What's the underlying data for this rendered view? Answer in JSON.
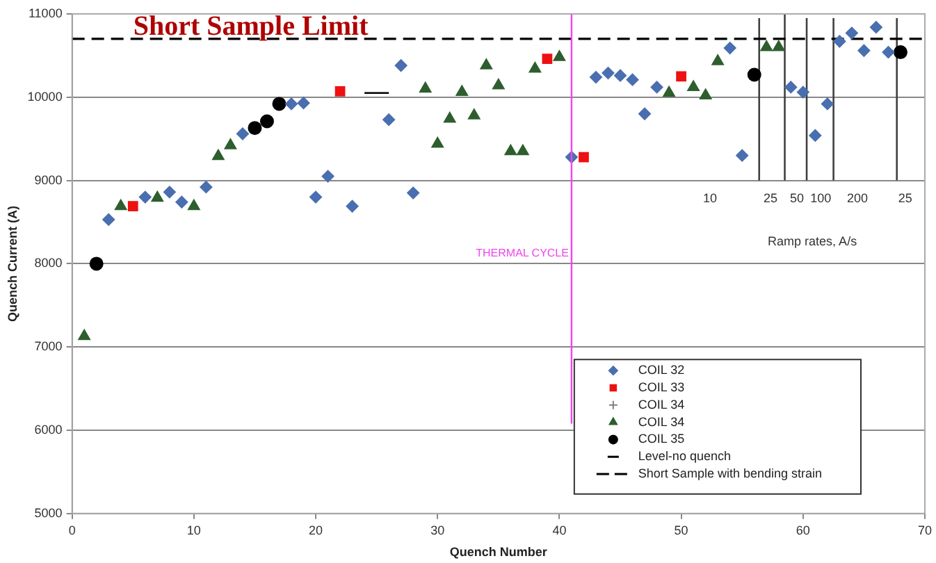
{
  "chart_data": {
    "type": "scatter",
    "title": "Short Sample Limit",
    "xlabel": "Quench Number",
    "ylabel": "Quench Current (A)",
    "xlim": [
      0,
      70
    ],
    "xticks": [
      0,
      10,
      20,
      30,
      40,
      50,
      60,
      70
    ],
    "ylim": [
      5000,
      11000
    ],
    "yticks": [
      5000,
      6000,
      7000,
      8000,
      9000,
      10000,
      11000
    ],
    "grid": "y",
    "legend": "bottom right",
    "series": [
      {
        "name": "COIL 32",
        "color": "#4a6fb0",
        "marker": "diamond",
        "x": [
          3,
          6,
          8,
          9,
          11,
          14,
          18,
          19,
          20,
          21,
          23,
          26,
          27,
          28,
          41,
          43,
          44,
          45,
          46,
          47,
          48,
          54,
          55,
          59,
          60,
          61,
          62,
          63,
          64,
          65,
          66,
          67
        ],
        "values": [
          8530,
          8800,
          8860,
          8740,
          8920,
          9560,
          9920,
          9930,
          8800,
          9050,
          8690,
          9730,
          10380,
          8850,
          9280,
          10240,
          10290,
          10260,
          10210,
          9800,
          10120,
          10590,
          9300,
          10120,
          10060,
          9540,
          9920,
          10670,
          10770,
          10560,
          10840,
          10540
        ]
      },
      {
        "name": "COIL 33",
        "color": "#ee1111",
        "marker": "square",
        "x": [
          5,
          22,
          39,
          42,
          50
        ],
        "values": [
          8690,
          10070,
          10460,
          9280,
          10250
        ]
      },
      {
        "name": "COIL 34",
        "color": "#808080",
        "marker": "cross"
      },
      {
        "name": "COIL 34",
        "color": "#2e5e2e",
        "marker": "triangle",
        "x": [
          1,
          4,
          7,
          10,
          12,
          13,
          29,
          30,
          31,
          32,
          33,
          34,
          35,
          36,
          37,
          38,
          40,
          49,
          51,
          52,
          53,
          57,
          58
        ],
        "values": [
          7130,
          8690,
          8790,
          8690,
          9290,
          9420,
          10100,
          9440,
          9740,
          10060,
          9780,
          10380,
          10140,
          9350,
          9350,
          10340,
          10480,
          10050,
          10120,
          10020,
          10430,
          10600,
          10600
        ]
      },
      {
        "name": "COIL 35",
        "color": "#000000",
        "marker": "circle",
        "x": [
          2,
          15,
          16,
          17,
          56,
          68
        ],
        "values": [
          8000,
          9630,
          9710,
          9920,
          10270,
          10540
        ]
      },
      {
        "name": "Level-no quench",
        "type": "line",
        "color": "#000000",
        "marker": "none",
        "x": [
          24,
          26
        ],
        "values": [
          10050,
          10050
        ]
      },
      {
        "name": "Short Sample with bending strain",
        "type": "line",
        "color": "#000000",
        "marker": "none",
        "line_style": "dashed",
        "x": [
          0,
          70
        ],
        "values": [
          10700,
          10700
        ]
      },
      {
        "type": "line",
        "color": "#404040",
        "marker": "none",
        "x": [
          56.4,
          56.4
        ],
        "values": [
          9000,
          10950
        ]
      },
      {
        "type": "line",
        "color": "#404040",
        "marker": "none",
        "x": [
          58.5,
          58.5
        ],
        "values": [
          9000,
          11000
        ]
      },
      {
        "type": "line",
        "color": "#404040",
        "marker": "none",
        "x": [
          60.3,
          60.3
        ],
        "values": [
          9000,
          10950
        ]
      },
      {
        "type": "line",
        "color": "#404040",
        "marker": "none",
        "x": [
          62.5,
          62.5
        ],
        "values": [
          9000,
          10950
        ]
      },
      {
        "type": "line",
        "color": "#404040",
        "marker": "none",
        "x": [
          67.7,
          67.7
        ],
        "values": [
          9000,
          10950
        ]
      }
    ],
    "ref_lines": [
      {
        "axis": "x",
        "value": 41,
        "label": "THERMAL CYCLE",
        "color": "#ee44ee"
      }
    ],
    "annotations": [
      "10",
      "25",
      "50",
      "100",
      "200",
      "25",
      "Ramp rates, A/s"
    ]
  }
}
